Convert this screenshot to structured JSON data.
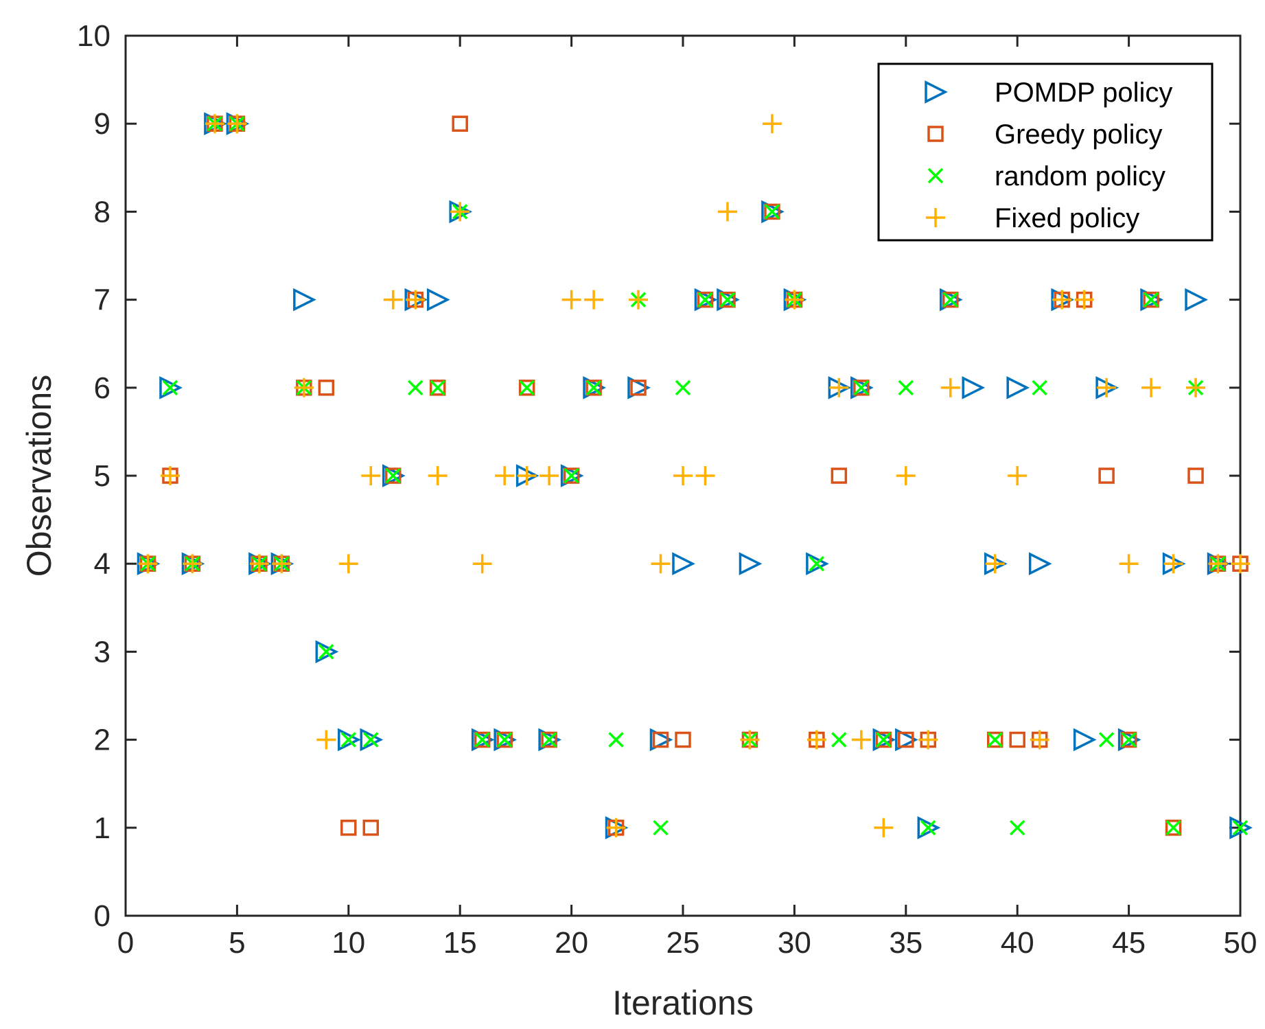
{
  "chart_data": {
    "type": "scatter",
    "title": "",
    "xlabel": "Iterations",
    "ylabel": "Observations",
    "xlim": [
      0,
      50
    ],
    "ylim": [
      0,
      10
    ],
    "xticks": [
      0,
      5,
      10,
      15,
      20,
      25,
      30,
      35,
      40,
      45,
      50
    ],
    "yticks": [
      0,
      1,
      2,
      3,
      4,
      5,
      6,
      7,
      8,
      9,
      10
    ],
    "grid": false,
    "legend_position": "top-right",
    "series": [
      {
        "name": "POMDP policy",
        "marker": "triangle-right",
        "color": "#0072BD",
        "points": [
          [
            1,
            4
          ],
          [
            2,
            6
          ],
          [
            3,
            4
          ],
          [
            4,
            9
          ],
          [
            5,
            9
          ],
          [
            6,
            4
          ],
          [
            7,
            4
          ],
          [
            8,
            7
          ],
          [
            9,
            3
          ],
          [
            10,
            2
          ],
          [
            11,
            2
          ],
          [
            12,
            5
          ],
          [
            13,
            7
          ],
          [
            14,
            7
          ],
          [
            15,
            8
          ],
          [
            16,
            2
          ],
          [
            17,
            2
          ],
          [
            18,
            5
          ],
          [
            19,
            2
          ],
          [
            20,
            5
          ],
          [
            21,
            6
          ],
          [
            22,
            1
          ],
          [
            23,
            6
          ],
          [
            24,
            2
          ],
          [
            25,
            4
          ],
          [
            26,
            7
          ],
          [
            27,
            7
          ],
          [
            28,
            4
          ],
          [
            29,
            8
          ],
          [
            30,
            7
          ],
          [
            31,
            4
          ],
          [
            32,
            6
          ],
          [
            33,
            6
          ],
          [
            34,
            2
          ],
          [
            35,
            2
          ],
          [
            36,
            1
          ],
          [
            37,
            7
          ],
          [
            38,
            6
          ],
          [
            39,
            4
          ],
          [
            40,
            6
          ],
          [
            41,
            4
          ],
          [
            42,
            7
          ],
          [
            43,
            2
          ],
          [
            44,
            6
          ],
          [
            45,
            2
          ],
          [
            46,
            7
          ],
          [
            47,
            4
          ],
          [
            48,
            7
          ],
          [
            49,
            4
          ],
          [
            50,
            1
          ]
        ]
      },
      {
        "name": "Greedy policy",
        "marker": "square",
        "color": "#D95319",
        "points": [
          [
            1,
            4
          ],
          [
            2,
            5
          ],
          [
            3,
            4
          ],
          [
            4,
            9
          ],
          [
            5,
            9
          ],
          [
            6,
            4
          ],
          [
            7,
            4
          ],
          [
            8,
            6
          ],
          [
            9,
            6
          ],
          [
            10,
            1
          ],
          [
            11,
            1
          ],
          [
            12,
            5
          ],
          [
            13,
            7
          ],
          [
            14,
            6
          ],
          [
            15,
            9
          ],
          [
            16,
            2
          ],
          [
            17,
            2
          ],
          [
            18,
            6
          ],
          [
            19,
            2
          ],
          [
            20,
            5
          ],
          [
            21,
            6
          ],
          [
            22,
            1
          ],
          [
            23,
            6
          ],
          [
            24,
            2
          ],
          [
            25,
            2
          ],
          [
            26,
            7
          ],
          [
            27,
            7
          ],
          [
            28,
            2
          ],
          [
            29,
            8
          ],
          [
            30,
            7
          ],
          [
            31,
            2
          ],
          [
            32,
            5
          ],
          [
            33,
            6
          ],
          [
            34,
            2
          ],
          [
            35,
            2
          ],
          [
            36,
            2
          ],
          [
            37,
            7
          ],
          [
            39,
            2
          ],
          [
            40,
            2
          ],
          [
            41,
            2
          ],
          [
            42,
            7
          ],
          [
            43,
            7
          ],
          [
            44,
            5
          ],
          [
            45,
            2
          ],
          [
            46,
            7
          ],
          [
            47,
            1
          ],
          [
            48,
            5
          ],
          [
            49,
            4
          ],
          [
            50,
            4
          ]
        ]
      },
      {
        "name": "random policy",
        "marker": "x",
        "color": "#00FF00",
        "points": [
          [
            1,
            4
          ],
          [
            2,
            6
          ],
          [
            3,
            4
          ],
          [
            4,
            9
          ],
          [
            5,
            9
          ],
          [
            6,
            4
          ],
          [
            7,
            4
          ],
          [
            8,
            6
          ],
          [
            9,
            3
          ],
          [
            10,
            2
          ],
          [
            11,
            2
          ],
          [
            12,
            5
          ],
          [
            13,
            6
          ],
          [
            14,
            6
          ],
          [
            15,
            8
          ],
          [
            16,
            2
          ],
          [
            17,
            2
          ],
          [
            18,
            6
          ],
          [
            19,
            2
          ],
          [
            20,
            5
          ],
          [
            21,
            6
          ],
          [
            22,
            2
          ],
          [
            23,
            7
          ],
          [
            24,
            1
          ],
          [
            25,
            6
          ],
          [
            26,
            7
          ],
          [
            27,
            7
          ],
          [
            28,
            2
          ],
          [
            29,
            8
          ],
          [
            30,
            7
          ],
          [
            31,
            4
          ],
          [
            32,
            2
          ],
          [
            33,
            6
          ],
          [
            34,
            2
          ],
          [
            35,
            6
          ],
          [
            36,
            1
          ],
          [
            37,
            7
          ],
          [
            39,
            2
          ],
          [
            40,
            1
          ],
          [
            41,
            6
          ],
          [
            44,
            2
          ],
          [
            45,
            2
          ],
          [
            46,
            7
          ],
          [
            47,
            1
          ],
          [
            48,
            6
          ],
          [
            49,
            4
          ],
          [
            50,
            1
          ]
        ]
      },
      {
        "name": "Fixed policy",
        "marker": "plus",
        "color": "#FFB000",
        "points": [
          [
            1,
            4
          ],
          [
            2,
            5
          ],
          [
            3,
            4
          ],
          [
            4,
            9
          ],
          [
            5,
            9
          ],
          [
            6,
            4
          ],
          [
            7,
            4
          ],
          [
            8,
            6
          ],
          [
            9,
            2
          ],
          [
            10,
            4
          ],
          [
            11,
            5
          ],
          [
            12,
            7
          ],
          [
            13,
            7
          ],
          [
            14,
            5
          ],
          [
            15,
            8
          ],
          [
            16,
            4
          ],
          [
            17,
            5
          ],
          [
            18,
            5
          ],
          [
            19,
            5
          ],
          [
            20,
            7
          ],
          [
            21,
            7
          ],
          [
            22,
            1
          ],
          [
            23,
            7
          ],
          [
            24,
            4
          ],
          [
            25,
            5
          ],
          [
            26,
            5
          ],
          [
            27,
            8
          ],
          [
            28,
            2
          ],
          [
            29,
            9
          ],
          [
            30,
            7
          ],
          [
            31,
            2
          ],
          [
            32,
            6
          ],
          [
            33,
            2
          ],
          [
            34,
            1
          ],
          [
            35,
            5
          ],
          [
            36,
            2
          ],
          [
            37,
            6
          ],
          [
            39,
            4
          ],
          [
            40,
            5
          ],
          [
            41,
            2
          ],
          [
            42,
            7
          ],
          [
            43,
            7
          ],
          [
            44,
            6
          ],
          [
            45,
            4
          ],
          [
            46,
            6
          ],
          [
            47,
            4
          ],
          [
            48,
            6
          ],
          [
            49,
            4
          ],
          [
            50,
            4
          ]
        ]
      }
    ]
  }
}
